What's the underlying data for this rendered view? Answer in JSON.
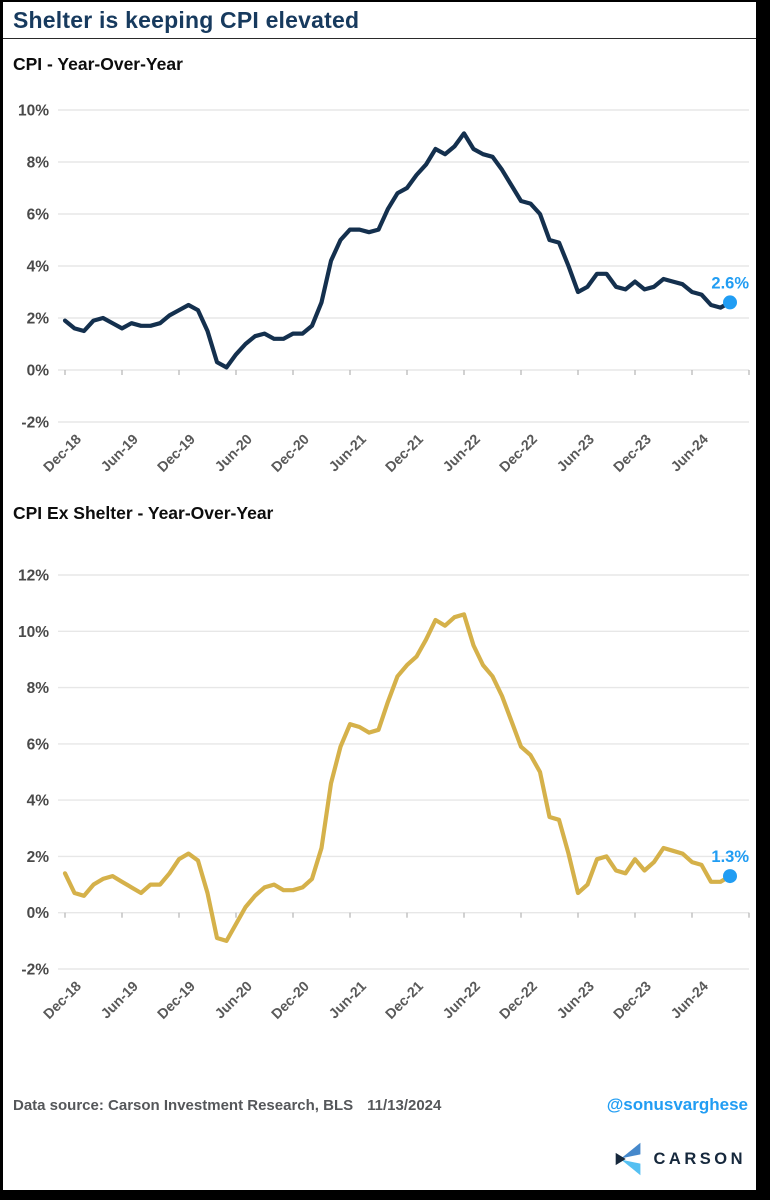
{
  "page": {
    "title": "Shelter is keeping CPI elevated"
  },
  "footer": {
    "source_label": "Data source: Carson Investment Research, BLS",
    "date": "11/13/2024",
    "handle": "@sonusvarghese",
    "brand": "CARSON"
  },
  "colors": {
    "title_navy": "#173a5e",
    "cpi_line": "#14304e",
    "ex_shelter_line": "#d5b14a",
    "accent_blue": "#219df3",
    "gridline": "#e7e7e7",
    "axis_text": "#4a4a4a",
    "footer_gray": "#55575a",
    "logo_dark": "#16283c",
    "logo_blue_mid": "#4588cb",
    "logo_blue_light": "#55c0f2"
  },
  "chart_data": [
    {
      "type": "line",
      "title": "CPI - Year-Over-Year",
      "xlabel": "",
      "ylabel": "",
      "x_start": "Dec-2018",
      "x_end": "Oct-2024",
      "frequency": "monthly",
      "tick_labels": [
        "Dec-18",
        "Jun-19",
        "Dec-19",
        "Jun-20",
        "Dec-20",
        "Jun-21",
        "Dec-21",
        "Jun-22",
        "Dec-22",
        "Jun-23",
        "Dec-23",
        "Jun-24"
      ],
      "tick_every_n_points": 6,
      "yticks": [
        10,
        8,
        6,
        4,
        2,
        0,
        -2
      ],
      "ylim": [
        -2,
        10
      ],
      "grid": true,
      "legend": "none",
      "line_color": "#14304e",
      "end_label": "2.6%",
      "end_value": 2.6,
      "values": [
        1.9,
        1.6,
        1.5,
        1.9,
        2.0,
        1.8,
        1.6,
        1.8,
        1.7,
        1.7,
        1.8,
        2.1,
        2.3,
        2.5,
        2.3,
        1.5,
        0.3,
        0.1,
        0.6,
        1.0,
        1.3,
        1.4,
        1.2,
        1.2,
        1.4,
        1.4,
        1.7,
        2.6,
        4.2,
        5.0,
        5.4,
        5.4,
        5.3,
        5.4,
        6.2,
        6.8,
        7.0,
        7.5,
        7.9,
        8.5,
        8.3,
        8.6,
        9.1,
        8.5,
        8.3,
        8.2,
        7.7,
        7.1,
        6.5,
        6.4,
        6.0,
        5.0,
        4.9,
        4.0,
        3.0,
        3.2,
        3.7,
        3.7,
        3.2,
        3.1,
        3.4,
        3.1,
        3.2,
        3.5,
        3.4,
        3.3,
        3.0,
        2.9,
        2.5,
        2.4,
        2.6
      ]
    },
    {
      "type": "line",
      "title": "CPI Ex Shelter - Year-Over-Year",
      "xlabel": "",
      "ylabel": "",
      "x_start": "Dec-2018",
      "x_end": "Oct-2024",
      "frequency": "monthly",
      "tick_labels": [
        "Dec-18",
        "Jun-19",
        "Dec-19",
        "Jun-20",
        "Dec-20",
        "Jun-21",
        "Dec-21",
        "Jun-22",
        "Dec-22",
        "Jun-23",
        "Dec-23",
        "Jun-24"
      ],
      "tick_every_n_points": 6,
      "yticks": [
        12,
        10,
        8,
        6,
        4,
        2,
        0,
        -2
      ],
      "ylim": [
        -2,
        12
      ],
      "grid": true,
      "legend": "none",
      "line_color": "#d5b14a",
      "end_label": "1.3%",
      "end_value": 1.3,
      "values": [
        1.4,
        0.7,
        0.6,
        1.0,
        1.2,
        1.3,
        1.1,
        0.9,
        0.7,
        1.0,
        1.0,
        1.4,
        1.9,
        2.1,
        1.85,
        0.7,
        -0.9,
        -1.0,
        -0.4,
        0.2,
        0.6,
        0.9,
        1.0,
        0.8,
        0.8,
        0.9,
        1.2,
        2.3,
        4.6,
        5.9,
        6.7,
        6.6,
        6.4,
        6.5,
        7.5,
        8.4,
        8.8,
        9.1,
        9.7,
        10.4,
        10.2,
        10.5,
        10.6,
        9.5,
        8.8,
        8.4,
        7.7,
        6.8,
        5.9,
        5.6,
        5.0,
        3.4,
        3.3,
        2.1,
        0.7,
        1.0,
        1.9,
        2.0,
        1.5,
        1.4,
        1.9,
        1.5,
        1.8,
        2.3,
        2.2,
        2.1,
        1.8,
        1.7,
        1.1,
        1.1,
        1.3
      ]
    }
  ]
}
